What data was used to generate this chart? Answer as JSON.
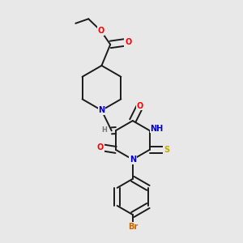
{
  "bg_color": "#e8e8e8",
  "bond_color": "#1a1a1a",
  "bond_width": 1.4,
  "atom_colors": {
    "O": "#ff0000",
    "N": "#0000cc",
    "S": "#bbaa00",
    "Br": "#cc6600",
    "H": "#777777",
    "C": "#1a1a1a"
  },
  "font_size": 7.0
}
